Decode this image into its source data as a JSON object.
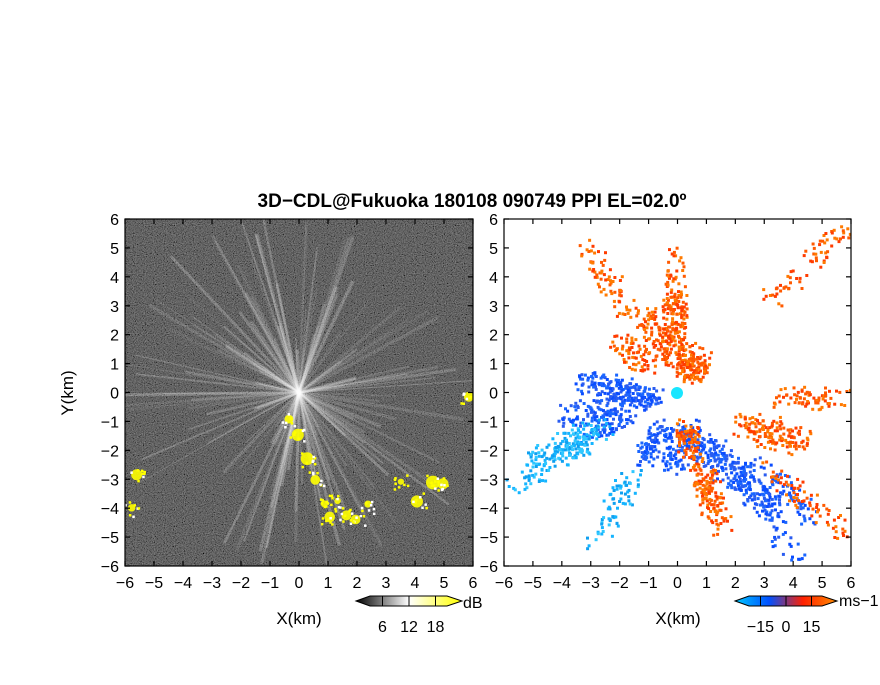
{
  "title": "3D−CDL@Fukuoka 180108 090749 PPI EL=02.0º",
  "panels": [
    {
      "id": "reflectivity",
      "xlabel": "X(km)",
      "ylabel": "Y(km)",
      "colorbar": {
        "unit": "dB",
        "ticks": [
          "6",
          "12",
          "18"
        ],
        "colors": [
          "#000000",
          "#ffffff",
          "#ffff00"
        ]
      }
    },
    {
      "id": "velocity",
      "xlabel": "X(km)",
      "ylabel": "",
      "colorbar": {
        "unit": "ms−1",
        "ticks": [
          "−15",
          "0",
          "15"
        ],
        "colors": [
          "#00c8ff",
          "#0050ff",
          "#ff2000",
          "#ff8c00"
        ]
      }
    }
  ],
  "chart_data": {
    "type": "heatmap",
    "title": "3D−CDL@Fukuoka 180108 090749 PPI EL=02.0º",
    "xlim": [
      -6,
      6
    ],
    "ylim": [
      -6,
      6
    ],
    "x_ticks": [
      "−6",
      "−5",
      "−4",
      "−3",
      "−2",
      "−1",
      "0",
      "1",
      "2",
      "3",
      "4",
      "5",
      "6"
    ],
    "y_ticks": [
      "6",
      "5",
      "4",
      "3",
      "2",
      "1",
      "0",
      "−1",
      "−2",
      "−3",
      "−4",
      "−5",
      "−6"
    ],
    "radar_location": [
      0,
      0
    ],
    "reflectivity_high_regions": [
      {
        "name": "band",
        "points": [
          [
            -0.4,
            -0.9
          ],
          [
            -0.1,
            -1.5
          ],
          [
            0.3,
            -2.3
          ],
          [
            0.6,
            -3.0
          ],
          [
            0.9,
            -3.8
          ],
          [
            1.0,
            -4.3
          ]
        ]
      },
      {
        "name": "cluster-south",
        "points": [
          [
            1.3,
            -3.8
          ],
          [
            1.6,
            -4.2
          ],
          [
            2.0,
            -4.4
          ],
          [
            2.4,
            -3.9
          ],
          [
            3.5,
            -3.1
          ],
          [
            4.1,
            -3.7
          ],
          [
            4.6,
            -3.1
          ],
          [
            4.9,
            -3.2
          ]
        ]
      },
      {
        "name": "cluster-east",
        "points": [
          [
            5.8,
            -0.1
          ]
        ]
      },
      {
        "name": "cluster-west",
        "points": [
          [
            -5.6,
            -2.8
          ],
          [
            -5.8,
            -4.0
          ]
        ]
      }
    ],
    "velocity_regions": [
      {
        "name": "receding-north",
        "sign": "positive",
        "points": [
          [
            -1.2,
            2.8
          ],
          [
            -0.3,
            2.2
          ],
          [
            0.4,
            1.4
          ],
          [
            0.8,
            1.2
          ],
          [
            -2.0,
            1.8
          ],
          [
            -0.2,
            3.3
          ],
          [
            -3.2,
            5.1
          ],
          [
            -0.1,
            4.8
          ],
          [
            5.7,
            5.7
          ]
        ]
      },
      {
        "name": "approaching-west",
        "sign": "negative",
        "points": [
          [
            -3.3,
            0.4
          ],
          [
            -2.6,
            0.0
          ],
          [
            -1.6,
            -0.2
          ],
          [
            -4.0,
            -0.8
          ],
          [
            -3.1,
            -1.3
          ]
        ]
      },
      {
        "name": "approaching-southwest",
        "sign": "strong-negative",
        "points": [
          [
            -5.6,
            -3.1
          ],
          [
            -5.2,
            -2.5
          ],
          [
            -4.6,
            -2.0
          ],
          [
            -2.9,
            -5.1
          ]
        ]
      },
      {
        "name": "approaching-south",
        "sign": "negative",
        "points": [
          [
            -1.2,
            -2.2
          ],
          [
            -0.2,
            -2.6
          ],
          [
            0.6,
            -2.2
          ],
          [
            1.6,
            -2.9
          ],
          [
            2.4,
            -3.4
          ],
          [
            3.4,
            -4.1
          ],
          [
            4.6,
            -4.2
          ],
          [
            4.1,
            -5.6
          ]
        ]
      },
      {
        "name": "receding-south",
        "sign": "positive",
        "points": [
          [
            1.2,
            -4.1
          ],
          [
            1.5,
            -4.6
          ],
          [
            0.4,
            -2.0
          ]
        ]
      },
      {
        "name": "receding-east",
        "sign": "positive",
        "points": [
          [
            3.8,
            -1.8
          ],
          [
            4.6,
            -1.7
          ],
          [
            5.7,
            -0.2
          ],
          [
            5.9,
            -4.9
          ]
        ]
      }
    ]
  }
}
